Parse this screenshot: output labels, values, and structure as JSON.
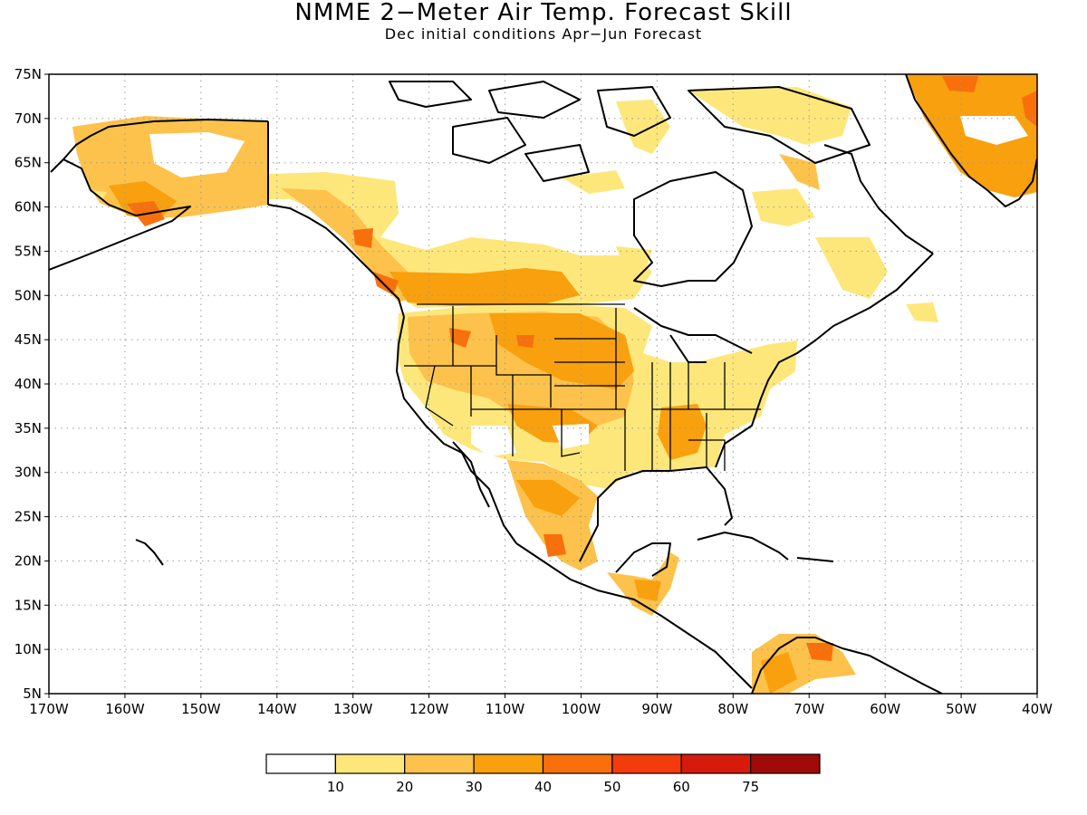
{
  "title": "NMME 2−Meter Air Temp. Forecast Skill",
  "subtitle": "Dec initial conditions  Apr−Jun Forecast",
  "map": {
    "lon_range": [
      -170,
      -40
    ],
    "lat_range": [
      5,
      75
    ],
    "lon_ticks": [
      "170W",
      "160W",
      "150W",
      "140W",
      "130W",
      "120W",
      "110W",
      "100W",
      "90W",
      "80W",
      "70W",
      "60W",
      "50W",
      "40W"
    ],
    "lat_ticks": [
      "5N",
      "10N",
      "15N",
      "20N",
      "25N",
      "30N",
      "35N",
      "40N",
      "45N",
      "50N",
      "55N",
      "60N",
      "65N",
      "70N",
      "75N"
    ],
    "grid": true
  },
  "colorbar": {
    "labels": [
      "10",
      "20",
      "30",
      "40",
      "50",
      "60",
      "75"
    ],
    "colors": [
      "#ffffff",
      "#fde77b",
      "#fcc24b",
      "#f8a00e",
      "#f7700c",
      "#f43b0b",
      "#d61b0d",
      "#a00a08"
    ]
  }
}
